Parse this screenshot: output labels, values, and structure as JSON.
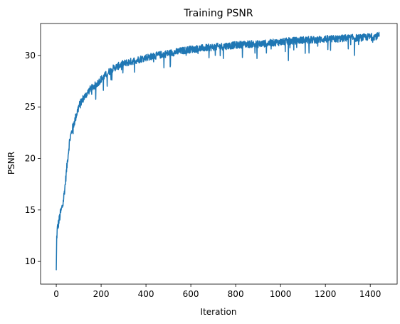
{
  "chart_data": {
    "type": "line",
    "title": "Training PSNR",
    "xlabel": "Iteration",
    "ylabel": "PSNR",
    "xlim": [
      -70,
      1520
    ],
    "ylim": [
      7.8,
      33.1
    ],
    "xticks": [
      0,
      200,
      400,
      600,
      800,
      1000,
      1200,
      1400
    ],
    "yticks": [
      10,
      15,
      20,
      25,
      30
    ],
    "grid": false,
    "legend": "none",
    "series": [
      {
        "color": "#1f77b4",
        "x_range": [
          0,
          1440
        ],
        "anchors": {
          "x": [
            0,
            2,
            5,
            10,
            20,
            30,
            40,
            50,
            60,
            70,
            80,
            100,
            120,
            150,
            180,
            200,
            250,
            300,
            350,
            400,
            450,
            500,
            550,
            600,
            650,
            700,
            750,
            800,
            850,
            900,
            950,
            1000,
            1050,
            1100,
            1150,
            1200,
            1250,
            1300,
            1350,
            1400,
            1440
          ],
          "y": [
            9.0,
            12.3,
            13.2,
            13.7,
            14.8,
            15.6,
            17.5,
            19.8,
            21.8,
            22.7,
            23.5,
            25.0,
            25.8,
            26.7,
            27.2,
            27.7,
            28.7,
            29.2,
            29.5,
            29.8,
            30.0,
            30.2,
            30.4,
            30.6,
            30.7,
            30.8,
            30.9,
            31.0,
            31.1,
            31.1,
            31.2,
            31.3,
            31.4,
            31.5,
            31.5,
            31.6,
            31.6,
            31.7,
            31.7,
            31.8,
            31.9
          ]
        },
        "noise_amplitude": 0.35,
        "dips": [
          {
            "x": 75,
            "y": 22.4
          },
          {
            "x": 210,
            "y": 26.6
          },
          {
            "x": 250,
            "y": 28.4
          },
          {
            "x": 480,
            "y": 28.8
          },
          {
            "x": 745,
            "y": 29.7
          },
          {
            "x": 830,
            "y": 29.8
          },
          {
            "x": 895,
            "y": 29.7
          },
          {
            "x": 1035,
            "y": 29.5
          },
          {
            "x": 1110,
            "y": 30.2
          },
          {
            "x": 1330,
            "y": 30.0
          }
        ]
      }
    ]
  }
}
